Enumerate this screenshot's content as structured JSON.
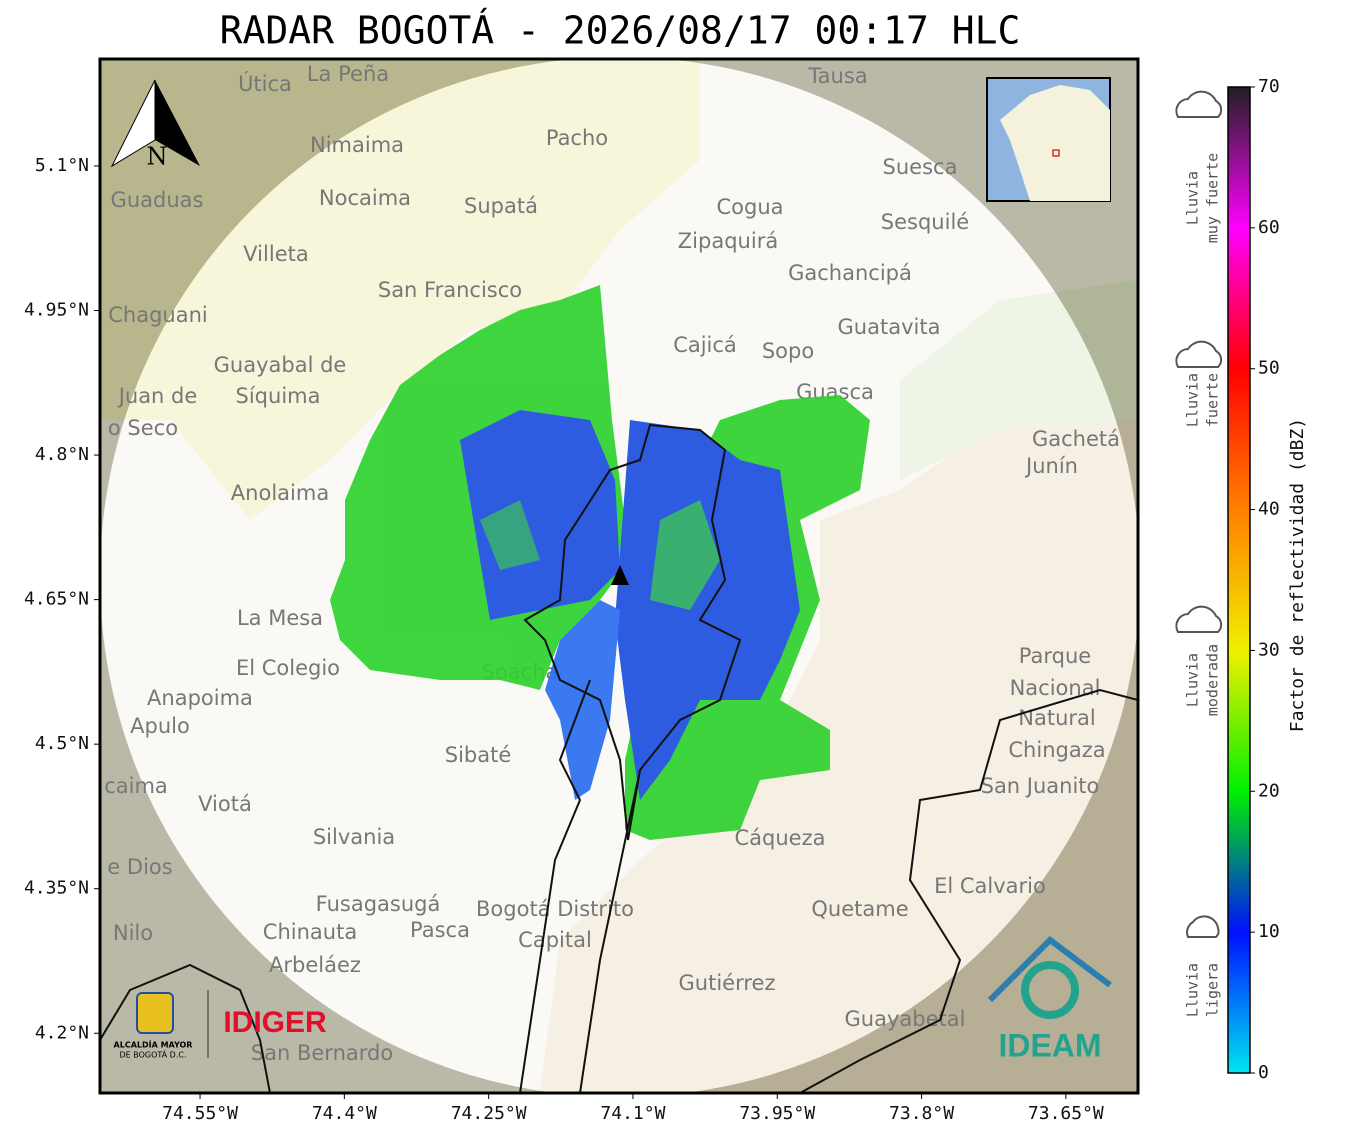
{
  "map": {
    "title": "RADAR BOGOTÁ - 2026/08/17 00:17 HLC",
    "xlim": [
      -74.654,
      -73.575
    ],
    "ylim": [
      4.138,
      5.211
    ],
    "xticks": [
      {
        "value": -74.55,
        "label": "74.55°W"
      },
      {
        "value": -74.4,
        "label": "74.4°W"
      },
      {
        "value": -74.25,
        "label": "74.25°W"
      },
      {
        "value": -74.1,
        "label": "74.1°W"
      },
      {
        "value": -73.95,
        "label": "73.95°W"
      },
      {
        "value": -73.8,
        "label": "73.8°W"
      },
      {
        "value": -73.65,
        "label": "73.65°W"
      }
    ],
    "yticks": [
      {
        "value": 5.1,
        "label": "5.1°N"
      },
      {
        "value": 4.95,
        "label": "4.95°N"
      },
      {
        "value": 4.8,
        "label": "4.8°N"
      },
      {
        "value": 4.65,
        "label": "4.65°N"
      },
      {
        "value": 4.5,
        "label": "4.5°N"
      },
      {
        "value": 4.35,
        "label": "4.35°N"
      },
      {
        "value": 4.2,
        "label": "4.2°N"
      }
    ],
    "grid": true,
    "north": "N",
    "places": [
      "Útica",
      "La Peña",
      "Tausa",
      "Pacho",
      "Nimaima",
      "Suesca",
      "Guaduas",
      "Nocaima",
      "Supatá",
      "Cogua",
      "Sesquilé",
      "Zipaquirá",
      "Villeta",
      "Gachancipá",
      "San Francisco",
      "Chaguani",
      "Guatavita",
      "Cajicá",
      "Sopo",
      "Guayabal de",
      "Síquima",
      "Juan de",
      "o Seco",
      "Guasca",
      "Gachetá",
      "Junín",
      "Anolaima",
      "La Mesa",
      "Parque",
      "Nacional",
      "Natural",
      "El Colegio",
      "Soacha",
      "Chingaza",
      "Anapoima",
      "Apulo",
      "Sibaté",
      "San Juanito",
      "Viotá",
      "caima",
      "Silvania",
      "Cáqueza",
      "El Calvario",
      "Fusagasugá",
      "Quetame",
      "Bogotá Distrito",
      "Capital",
      "Chinauta",
      "Pasca",
      "Nilo",
      "e Dios",
      "Arbeláez",
      "Gutiérrez",
      "Guayabetal",
      "San Bernardo"
    ],
    "logos": {
      "idiger": "IDIGER",
      "alcaldia": [
        "ALCALDÍA MAYOR",
        "DE BOGOTÁ D.C."
      ],
      "ideam": "IDEAM"
    }
  },
  "colorbar": {
    "label": "Factor de reflectividad (dBZ)",
    "lim": [
      0,
      70
    ],
    "ticks": [
      0,
      10,
      20,
      30,
      40,
      50,
      60,
      70
    ],
    "colors": [
      "#00e5f0",
      "#0010ff",
      "#00f000",
      "#f0f000",
      "#ff8000",
      "#ff0000",
      "#ff00ff",
      "#202020"
    ],
    "categories": [
      [
        "Lluvia",
        "muy fuerte"
      ],
      [
        "Lluvia",
        "fuerte"
      ],
      [
        "Lluvia",
        "moderada"
      ],
      [
        "Lluvia",
        "ligera"
      ]
    ]
  }
}
